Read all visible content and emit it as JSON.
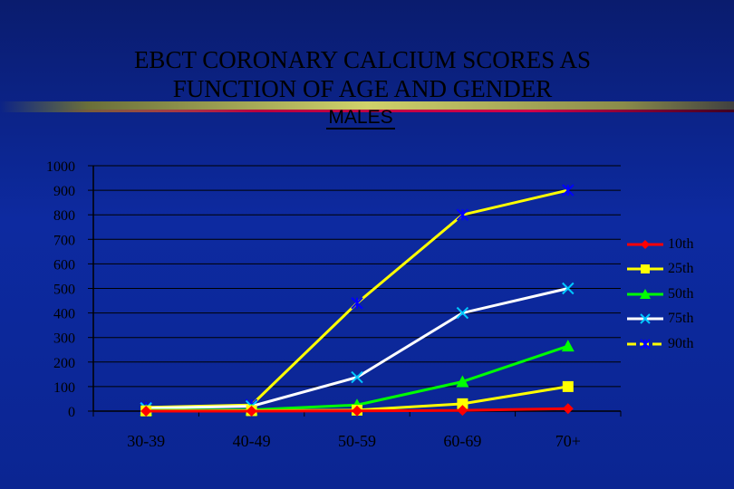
{
  "title_line1": "EBCT CORONARY CALCIUM SCORES AS",
  "title_line2": "FUNCTION OF AGE AND GENDER",
  "subtitle": "MALES",
  "colors": {
    "10th": "#ff0000",
    "25th": "#ffff00",
    "50th": "#00ff00",
    "75th": "#ffffff",
    "90th": "#ffff00",
    "90th_marker": "#0000ff",
    "axis": "#000000",
    "grid": "#000000"
  },
  "chart_data": {
    "type": "line",
    "title": "EBCT CORONARY CALCIUM SCORES AS FUNCTION OF AGE AND GENDER",
    "subtitle": "MALES",
    "categories": [
      "30-39",
      "40-49",
      "50-59",
      "60-69",
      "70+"
    ],
    "ylim": [
      0,
      1000
    ],
    "yticks": [
      "0",
      "100",
      "200",
      "300",
      "400",
      "500",
      "600",
      "700",
      "800",
      "900",
      "1000"
    ],
    "grid": "horizontal",
    "legend_position": "right",
    "series": [
      {
        "name": "10th",
        "marker": "diamond",
        "values": [
          0,
          0,
          1,
          3,
          10
        ]
      },
      {
        "name": "25th",
        "marker": "square",
        "values": [
          1,
          2,
          4,
          30,
          100
        ]
      },
      {
        "name": "50th",
        "marker": "triangle",
        "values": [
          3,
          5,
          25,
          120,
          265
        ]
      },
      {
        "name": "75th",
        "marker": "x",
        "values": [
          12,
          20,
          138,
          400,
          500
        ]
      },
      {
        "name": "90th",
        "marker": "star",
        "values": [
          15,
          25,
          440,
          800,
          900
        ]
      }
    ]
  }
}
